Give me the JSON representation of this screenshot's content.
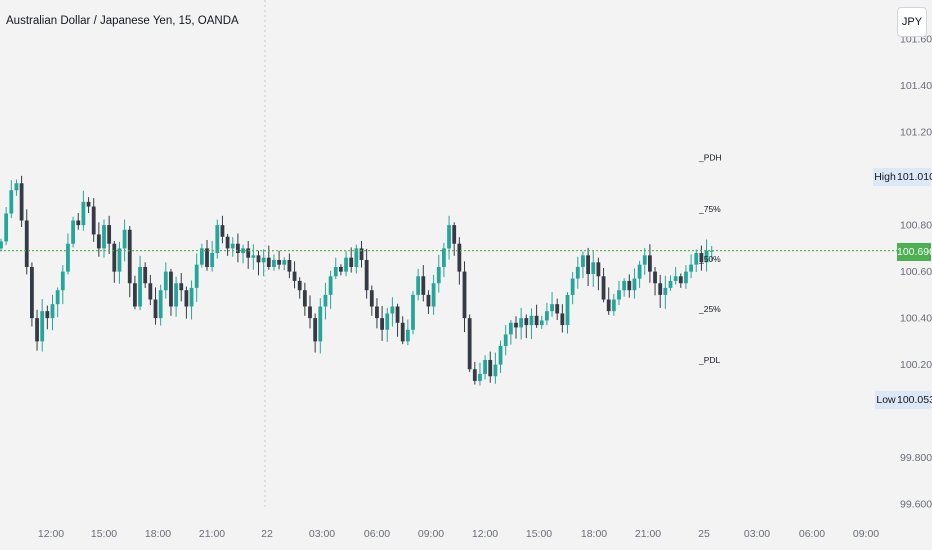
{
  "header": {
    "title": "Australian Dollar / Japanese Yen, 15, OANDA"
  },
  "toolbar": {
    "currency_label": "JPY"
  },
  "price_axis": {
    "ticks": [
      "101.600",
      "101.400",
      "101.200",
      "100.800",
      "100.600",
      "100.400",
      "100.200",
      "99.800",
      "99.600"
    ]
  },
  "time_axis": {
    "ticks": [
      "12:00",
      "15:00",
      "18:00",
      "21:00",
      "22",
      "03:00",
      "06:00",
      "09:00",
      "12:00",
      "15:00",
      "18:00",
      "21:00",
      "25",
      "03:00",
      "06:00",
      "09:00"
    ]
  },
  "markers": {
    "current_price": "100.690",
    "high_label": "High",
    "high_value": "101.010",
    "low_label": "Low",
    "low_value": "100.053"
  },
  "levels": [
    {
      "label": "_PDH",
      "value": 101.09
    },
    {
      "label": "_75%",
      "value": 100.87
    },
    {
      "label": "_50%",
      "value": 100.655
    },
    {
      "label": "_25%",
      "value": 100.44
    },
    {
      "label": "_PDL",
      "value": 100.22
    }
  ],
  "colors": {
    "up": "#26a69a",
    "down": "#363a45",
    "current_line": "#4caf50",
    "background": "#f3f3f3",
    "axis_text": "#6a6d78"
  },
  "chart_data": {
    "type": "candlestick",
    "symbol": "AUDJPY",
    "interval": "15",
    "ylim": [
      99.5,
      101.7
    ],
    "current_price": 100.69,
    "high": 101.01,
    "low": 100.053,
    "grid": false,
    "close": [
      100.73,
      100.85,
      100.95,
      100.98,
      100.82,
      100.62,
      100.4,
      100.3,
      100.43,
      100.4,
      100.46,
      100.52,
      100.6,
      100.72,
      100.82,
      100.8,
      100.9,
      100.88,
      100.76,
      100.7,
      100.8,
      100.72,
      100.6,
      100.7,
      100.78,
      100.55,
      100.45,
      100.62,
      100.55,
      100.48,
      100.4,
      100.52,
      100.6,
      100.45,
      100.55,
      100.52,
      100.45,
      100.53,
      100.63,
      100.7,
      100.62,
      100.68,
      100.8,
      100.75,
      100.7,
      100.72,
      100.68,
      100.7,
      100.66,
      100.67,
      100.64,
      100.66,
      100.62,
      100.65,
      100.63,
      100.65,
      100.6,
      100.56,
      100.52,
      100.45,
      100.4,
      100.3,
      100.45,
      100.5,
      100.58,
      100.62,
      100.6,
      100.66,
      100.62,
      100.7,
      100.65,
      100.52,
      100.45,
      100.4,
      100.35,
      100.42,
      100.45,
      100.38,
      100.3,
      100.35,
      100.5,
      100.58,
      100.5,
      100.45,
      100.55,
      100.62,
      100.7,
      100.8,
      100.72,
      100.6,
      100.4,
      100.18,
      100.13,
      100.16,
      100.22,
      100.15,
      100.2,
      100.28,
      100.33,
      100.38,
      100.36,
      100.4,
      100.37,
      100.41,
      100.37,
      100.39,
      100.43,
      100.46,
      100.42,
      100.37,
      100.5,
      100.57,
      100.62,
      100.67,
      100.59,
      100.64,
      100.58,
      100.48,
      100.43,
      100.48,
      100.52,
      100.56,
      100.52,
      100.57,
      100.63,
      100.67,
      100.6,
      100.55,
      100.5,
      100.53,
      100.56,
      100.58,
      100.55,
      100.6,
      100.63,
      100.68,
      100.64,
      100.69,
      100.69
    ]
  }
}
